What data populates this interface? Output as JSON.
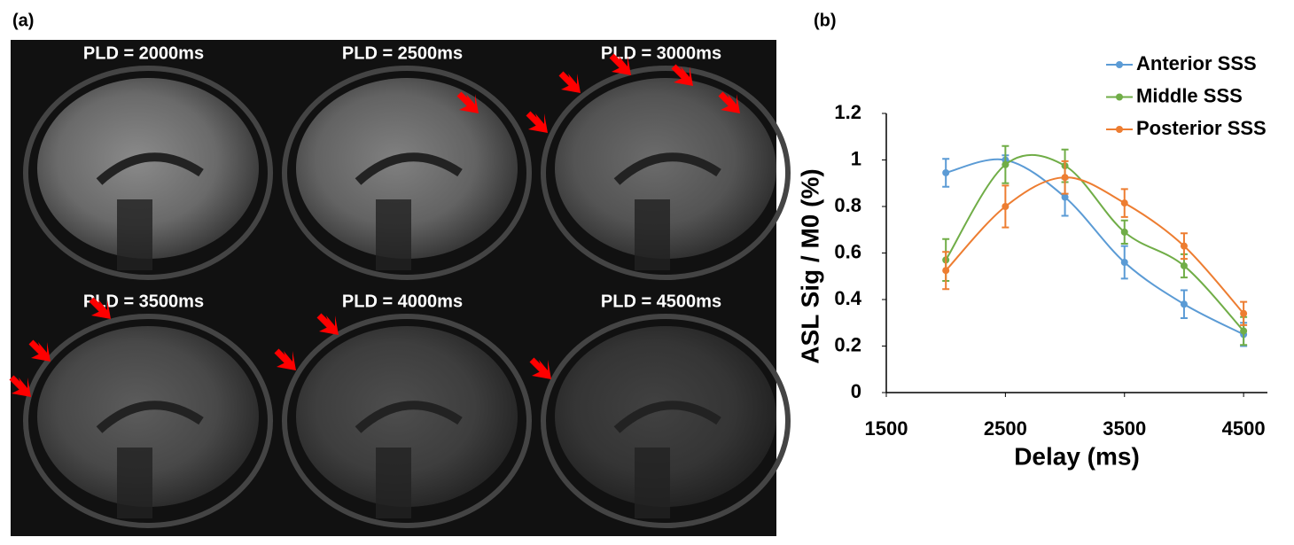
{
  "panel_labels": [
    "(a)",
    "(b)"
  ],
  "images": [
    {
      "label": "PLD = 2000ms"
    },
    {
      "label": "PLD = 2500ms"
    },
    {
      "label": "PLD = 3000ms"
    },
    {
      "label": "PLD = 3500ms"
    },
    {
      "label": "PLD = 4000ms"
    },
    {
      "label": "PLD = 4500ms"
    }
  ],
  "chart_data": {
    "type": "line",
    "x_label": "Delay (ms)",
    "y_label": "ASL Sig / M0 (%)",
    "x": [
      2000,
      2500,
      3000,
      3500,
      4000,
      4500
    ],
    "series": [
      {
        "name": "Anterior SSS",
        "color": "#5b9bd5",
        "values": [
          0.945,
          1.0,
          0.84,
          0.56,
          0.38,
          0.25
        ],
        "errors": [
          0.06,
          0.02,
          0.08,
          0.07,
          0.06,
          0.05
        ]
      },
      {
        "name": "Middle SSS",
        "color": "#70ad47",
        "values": [
          0.57,
          0.98,
          0.975,
          0.69,
          0.545,
          0.265
        ],
        "errors": [
          0.09,
          0.08,
          0.07,
          0.05,
          0.05,
          0.06
        ]
      },
      {
        "name": "Posterior SSS",
        "color": "#ed7d31",
        "values": [
          0.525,
          0.8,
          0.925,
          0.815,
          0.63,
          0.34
        ],
        "errors": [
          0.08,
          0.09,
          0.07,
          0.06,
          0.055,
          0.05
        ]
      }
    ],
    "xlim": [
      1500,
      4700
    ],
    "xticks": [
      1500,
      2500,
      3500,
      4500
    ],
    "ylim": [
      0,
      1.2
    ],
    "yticks": [
      0,
      0.2,
      0.4,
      0.6,
      0.8,
      1,
      1.2
    ],
    "smooth": true,
    "legend": "top-right"
  }
}
